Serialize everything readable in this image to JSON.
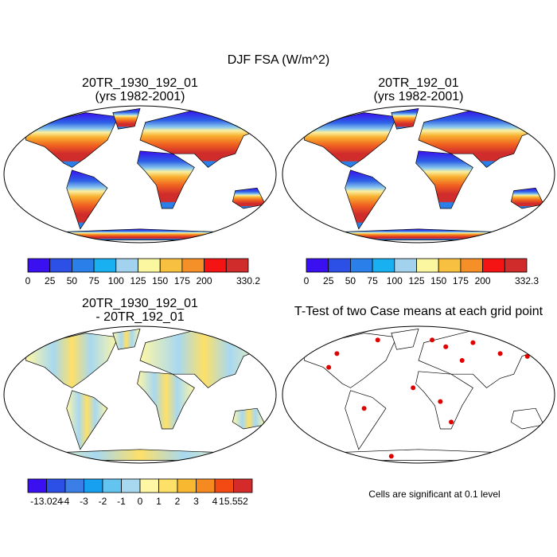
{
  "title": "DJF FSA (W/m^2)",
  "panels": [
    {
      "title": "20TR_1930_192_01",
      "subtitle": "(yrs 1982-2001)",
      "colorbar": {
        "colors": [
          "#3a10f0",
          "#2c50e6",
          "#2a80e8",
          "#18b0f0",
          "#a2d2ee",
          "#fbf6a0",
          "#f8c040",
          "#f59028",
          "#f51414",
          "#d02c2c"
        ],
        "ticks": [
          0,
          25,
          50,
          75,
          100,
          125,
          150,
          175,
          200,
          330.2
        ]
      }
    },
    {
      "title": "20TR_192_01",
      "subtitle": "(yrs 1982-2001)",
      "colorbar": {
        "colors": [
          "#3a10f0",
          "#2c50e6",
          "#2a80e8",
          "#18b0f0",
          "#a2d2ee",
          "#fbf6a0",
          "#f8c040",
          "#f59028",
          "#f51414",
          "#d02c2c"
        ],
        "ticks": [
          0,
          25,
          50,
          75,
          100,
          125,
          150,
          175,
          200,
          332.3
        ]
      }
    },
    {
      "title": "20TR_1930_192_01",
      "subtitle": "- 20TR_192_01",
      "colorbar": {
        "colors": [
          "#3a10f0",
          "#2c50e6",
          "#3a7ee6",
          "#18a0f0",
          "#62c4ef",
          "#a8d8f0",
          "#fff7a4",
          "#fde068",
          "#f8b830",
          "#f58a20",
          "#f24a12",
          "#d42a2a"
        ],
        "ticks": [
          -13.024,
          -4,
          -3,
          -2,
          -1,
          0,
          1,
          2,
          3,
          4,
          15.552
        ]
      }
    },
    {
      "title": "T-Test of two Case means at each grid point",
      "note": "Cells are significant at 0.1 level"
    }
  ]
}
